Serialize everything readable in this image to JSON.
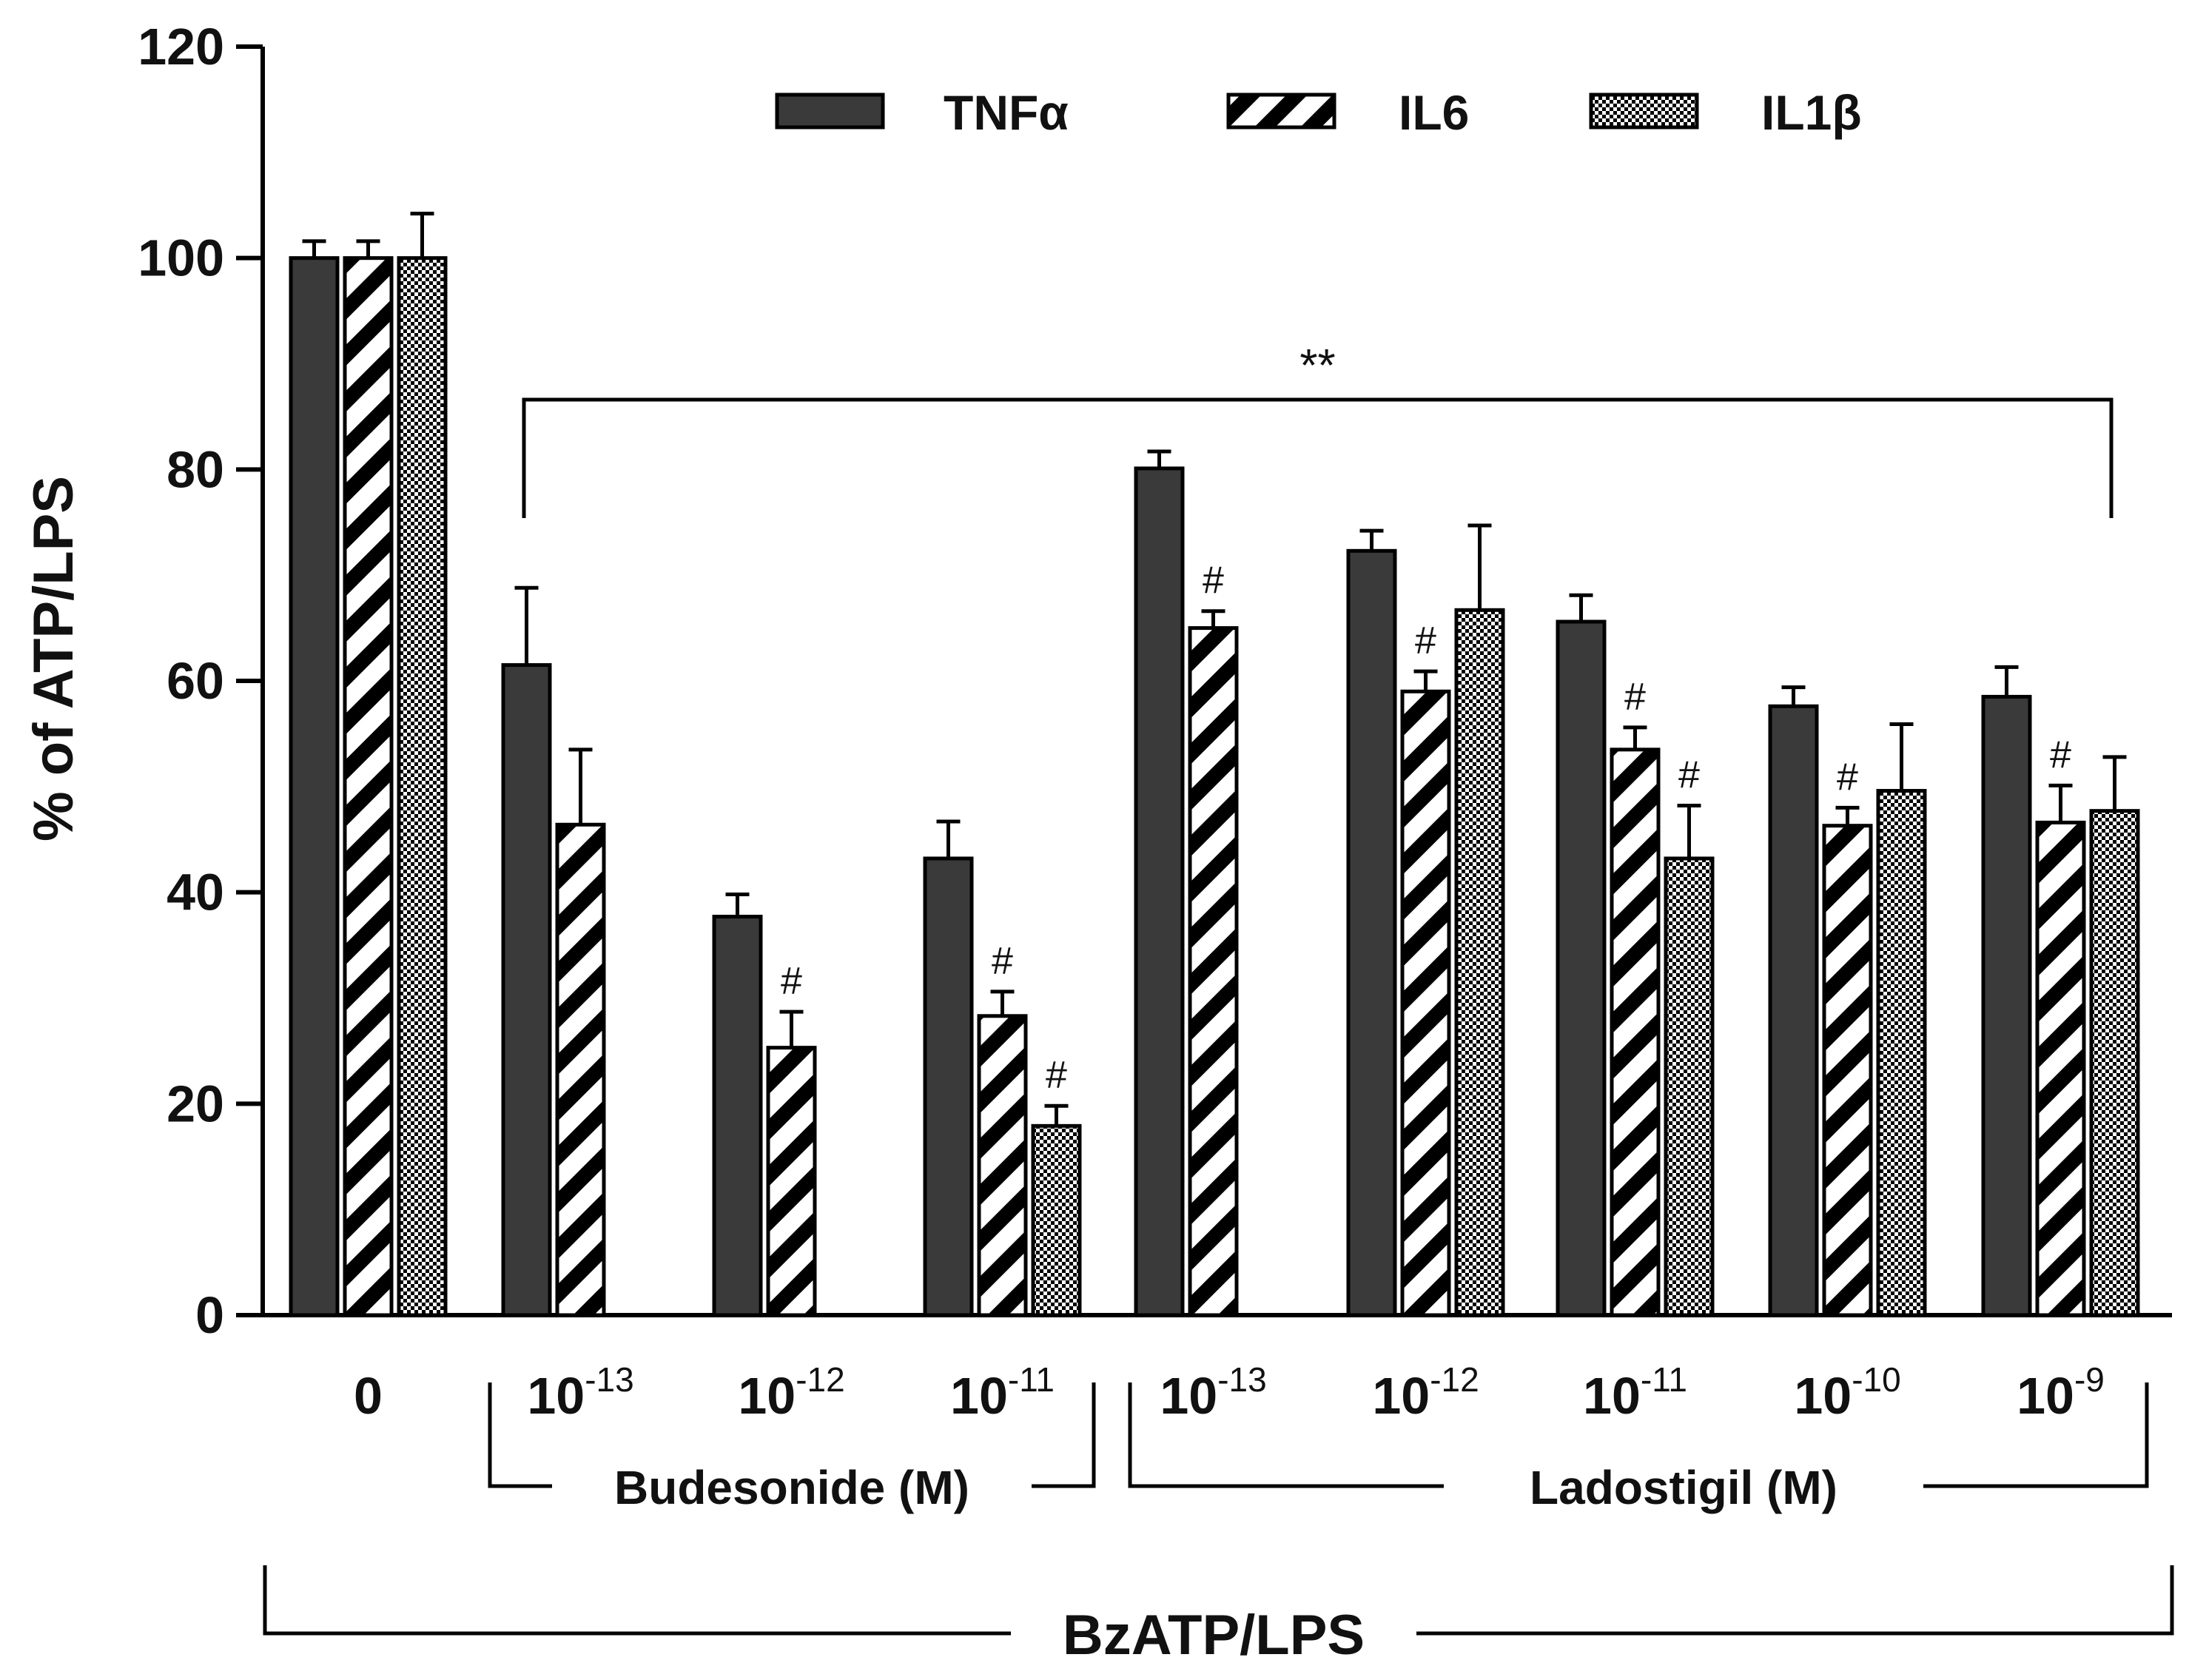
{
  "chart_data": {
    "type": "bar",
    "title": "",
    "ylabel": "% of ATP/LPS",
    "xlabel": "BzATP/LPS",
    "ylim": [
      0,
      120
    ],
    "yticks": [
      "0",
      "20",
      "40",
      "60",
      "80",
      "100",
      "120"
    ],
    "categories": [
      {
        "base": "0",
        "exp": ""
      },
      {
        "base": "10",
        "exp": "-13"
      },
      {
        "base": "10",
        "exp": "-12"
      },
      {
        "base": "10",
        "exp": "-11"
      },
      {
        "base": "10",
        "exp": "-13"
      },
      {
        "base": "10",
        "exp": "-12"
      },
      {
        "base": "10",
        "exp": "-11"
      },
      {
        "base": "10",
        "exp": "-10"
      },
      {
        "base": "10",
        "exp": "-9"
      }
    ],
    "series": [
      {
        "name": "TNFα",
        "pattern": "solid",
        "values": [
          100,
          61.5,
          37.7,
          43.2,
          80.1,
          72.3,
          65.6,
          57.6,
          58.5
        ],
        "errors": [
          1.6,
          7.3,
          2.1,
          3.5,
          1.6,
          1.9,
          2.5,
          1.8,
          2.8
        ],
        "marks": [
          "",
          "",
          "",
          "",
          "",
          "",
          "",
          "",
          ""
        ]
      },
      {
        "name": "IL6",
        "pattern": "stripes",
        "values": [
          100,
          46.4,
          25.3,
          28.3,
          65.0,
          59.0,
          53.5,
          46.3,
          46.6
        ],
        "errors": [
          1.6,
          7.1,
          3.4,
          2.3,
          1.6,
          1.9,
          2.1,
          1.7,
          3.5
        ],
        "marks": [
          "",
          "",
          "#",
          "#",
          "#",
          "#",
          "#",
          "#",
          "#"
        ]
      },
      {
        "name": "IL1β",
        "pattern": "checker",
        "values": [
          100,
          null,
          null,
          17.9,
          null,
          66.7,
          43.2,
          49.6,
          47.7
        ],
        "errors": [
          4.2,
          null,
          null,
          1.9,
          null,
          8.0,
          5.0,
          6.3,
          5.1
        ],
        "marks": [
          "",
          "",
          "",
          "#",
          "",
          "",
          "#",
          "",
          ""
        ]
      }
    ],
    "legend_position": "top",
    "significance_bracket": {
      "label": "**",
      "from_group": 1,
      "to_group": 8
    },
    "group_brackets": [
      {
        "label": "Budesonide (M)",
        "from_group": 1,
        "to_group": 3
      },
      {
        "label": "Ladostigil (M)",
        "from_group": 4,
        "to_group": 8
      }
    ],
    "colors": {
      "bar": "#3a3a3a",
      "stroke": "#000000",
      "pattern": "#000000"
    }
  }
}
